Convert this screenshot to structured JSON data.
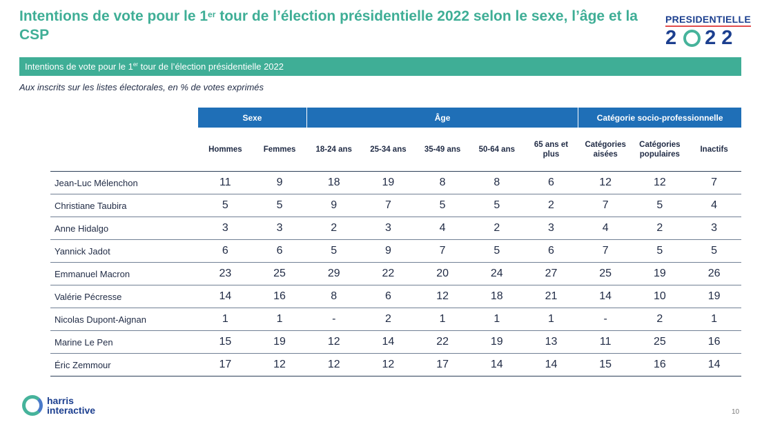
{
  "header": {
    "title_before": "Intentions de vote pour le 1",
    "title_sup": "er",
    "title_after": " tour de l’élection présidentielle 2022 selon le sexe, l’âge et la CSP",
    "logo_word": "PRESIDENTIELLE",
    "logo_year_left": "2",
    "logo_year_right": "22"
  },
  "banner": {
    "text_before": "Intentions de vote pour le 1",
    "text_sup": "er",
    "text_after": " tour de l’élection présidentielle 2022"
  },
  "subtitle": "Aux inscrits sur les listes électorales, en % de votes exprimés",
  "table": {
    "groups": [
      "Sexe",
      "Âge",
      "Catégorie socio-professionnelle"
    ],
    "columns": [
      "Hommes",
      "Femmes",
      "18-24 ans",
      "25-34 ans",
      "35-49 ans",
      "50-64 ans",
      "65 ans et plus",
      "Catégories aisées",
      "Catégories populaires",
      "Inactifs"
    ],
    "rows": [
      {
        "name": "Jean-Luc Mélenchon",
        "values": [
          "11",
          "9",
          "18",
          "19",
          "8",
          "8",
          "6",
          "12",
          "12",
          "7"
        ]
      },
      {
        "name": "Christiane Taubira",
        "values": [
          "5",
          "5",
          "9",
          "7",
          "5",
          "5",
          "2",
          "7",
          "5",
          "4"
        ]
      },
      {
        "name": "Anne Hidalgo",
        "values": [
          "3",
          "3",
          "2",
          "3",
          "4",
          "2",
          "3",
          "4",
          "2",
          "3"
        ]
      },
      {
        "name": "Yannick Jadot",
        "values": [
          "6",
          "6",
          "5",
          "9",
          "7",
          "5",
          "6",
          "7",
          "5",
          "5"
        ]
      },
      {
        "name": "Emmanuel Macron",
        "values": [
          "23",
          "25",
          "29",
          "22",
          "20",
          "24",
          "27",
          "25",
          "19",
          "26"
        ]
      },
      {
        "name": "Valérie Pécresse",
        "values": [
          "14",
          "16",
          "8",
          "6",
          "12",
          "18",
          "21",
          "14",
          "10",
          "19"
        ]
      },
      {
        "name": "Nicolas Dupont-Aignan",
        "values": [
          "1",
          "1",
          "-",
          "2",
          "1",
          "1",
          "1",
          "-",
          "2",
          "1"
        ]
      },
      {
        "name": "Marine Le Pen",
        "values": [
          "15",
          "19",
          "12",
          "14",
          "22",
          "19",
          "13",
          "11",
          "25",
          "16"
        ]
      },
      {
        "name": "Éric Zemmour",
        "values": [
          "17",
          "12",
          "12",
          "12",
          "17",
          "14",
          "14",
          "15",
          "16",
          "14"
        ]
      }
    ]
  },
  "footer": {
    "brand_line1": "harris",
    "brand_line2": "interactive",
    "page_number": "10"
  }
}
